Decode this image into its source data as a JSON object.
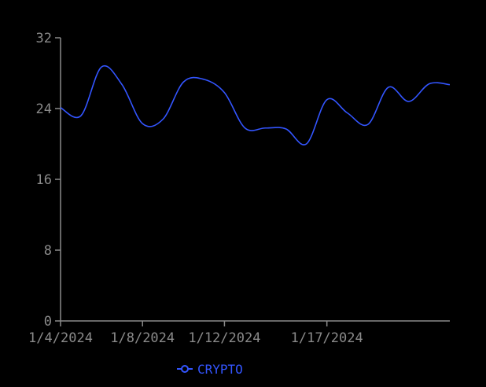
{
  "chart_data": {
    "type": "line",
    "title": "",
    "xlabel": "",
    "ylabel": "",
    "x": [
      "1/4/2024",
      "1/5/2024",
      "1/6/2024",
      "1/7/2024",
      "1/8/2024",
      "1/9/2024",
      "1/10/2024",
      "1/11/2024",
      "1/12/2024",
      "1/13/2024",
      "1/14/2024",
      "1/15/2024",
      "1/16/2024",
      "1/17/2024",
      "1/18/2024",
      "1/19/2024",
      "1/20/2024",
      "1/21/2024",
      "1/22/2024",
      "1/23/2024"
    ],
    "series": [
      {
        "name": "CRYPTO",
        "color": "#3355ff",
        "values": [
          24.1,
          23.2,
          28.7,
          26.7,
          22.3,
          22.8,
          27.0,
          27.3,
          25.8,
          21.8,
          21.8,
          21.7,
          20.0,
          25.0,
          23.5,
          22.2,
          26.4,
          24.8,
          26.8,
          26.7
        ]
      }
    ],
    "ylim": [
      0,
      32
    ],
    "yticks": [
      0,
      8,
      16,
      24,
      32
    ],
    "xtick_labels": [
      "1/4/2024",
      "1/8/2024",
      "1/12/2024",
      "1/17/2024"
    ],
    "grid": false,
    "legend": "bottom-center"
  },
  "legend_icon": "line-with-circle-marker-icon",
  "colors": {
    "background": "#000000",
    "axis": "#8a8a8a",
    "series": "#3355ff"
  }
}
